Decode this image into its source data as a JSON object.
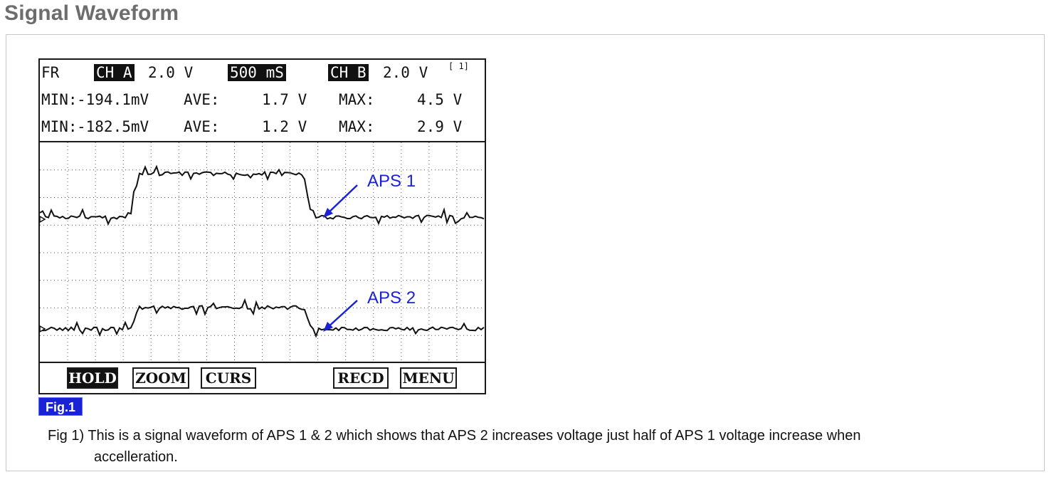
{
  "page": {
    "title": "Signal Waveform"
  },
  "scope": {
    "header": {
      "mode": "FR",
      "ch_a_label": "CH A",
      "ch_a_scale": "2.0 V",
      "timebase": "500 mS",
      "ch_b_label": "CH B",
      "ch_b_scale": "2.0 V",
      "page_indicator": "[ 1]"
    },
    "ch_a_stats": {
      "min_label": "MIN:",
      "min": "-194.1mV",
      "ave_label": "AVE:",
      "ave": "1.7 V",
      "max_label": "MAX:",
      "max": "4.5 V"
    },
    "ch_b_stats": {
      "min_label": "MIN:",
      "min": "-182.5mV",
      "ave_label": "AVE:",
      "ave": "1.2 V",
      "max_label": "MAX:",
      "max": "2.9 V"
    },
    "annotations": {
      "aps1": "APS 1",
      "aps2": "APS 2"
    },
    "annotation_color": "#1a22d6",
    "softkeys": [
      {
        "label": "HOLD",
        "active": true
      },
      {
        "label": "ZOOM",
        "active": false
      },
      {
        "label": "CURS",
        "active": false
      },
      {
        "label": "RECD",
        "active": false
      },
      {
        "label": "MENU",
        "active": false
      }
    ]
  },
  "figure": {
    "badge": "Fig.1",
    "badge_color": "#1a22d6",
    "caption_line1": "Fig 1) This is a signal waveform of APS 1 & 2 which shows that APS 2 increases voltage just half of APS 1 voltage increase when",
    "caption_line2": "accelleration."
  }
}
